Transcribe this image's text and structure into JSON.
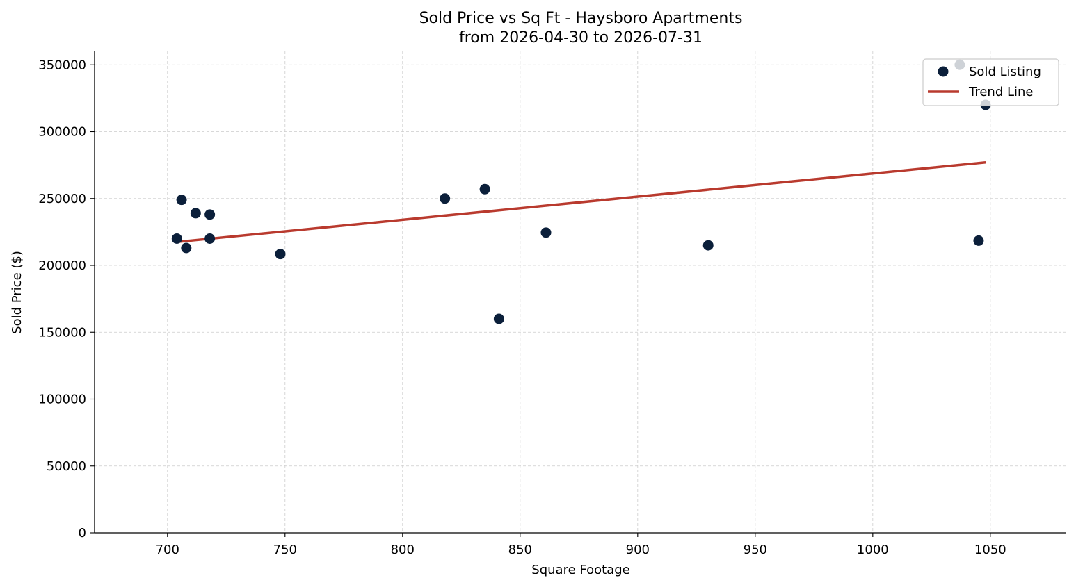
{
  "chart_data": {
    "type": "scatter",
    "title": "Sold Price vs Sq Ft - Haysboro Apartments",
    "subtitle": "from 2026-04-30 to 2026-07-31",
    "xlabel": "Square Footage",
    "ylabel": "Sold Price ($)",
    "xlim": [
      669,
      1082
    ],
    "ylim": [
      0,
      360000
    ],
    "x_ticks": [
      700,
      750,
      800,
      850,
      900,
      950,
      1000,
      1050
    ],
    "y_ticks": [
      0,
      50000,
      100000,
      150000,
      200000,
      250000,
      300000,
      350000
    ],
    "grid": true,
    "legend_position": "top-right",
    "series": [
      {
        "name": "Sold Listing",
        "kind": "scatter",
        "color": "#0b1f3a",
        "points": [
          {
            "x": 704,
            "y": 220000
          },
          {
            "x": 706,
            "y": 249000
          },
          {
            "x": 708,
            "y": 213000
          },
          {
            "x": 712,
            "y": 239000
          },
          {
            "x": 718,
            "y": 238000
          },
          {
            "x": 718,
            "y": 220000
          },
          {
            "x": 748,
            "y": 208500
          },
          {
            "x": 818,
            "y": 250000
          },
          {
            "x": 835,
            "y": 257000
          },
          {
            "x": 841,
            "y": 160000
          },
          {
            "x": 861,
            "y": 224500
          },
          {
            "x": 930,
            "y": 215000
          },
          {
            "x": 1037,
            "y": 350000
          },
          {
            "x": 1045,
            "y": 218500
          },
          {
            "x": 1048,
            "y": 320000
          }
        ]
      },
      {
        "name": "Trend Line",
        "kind": "line",
        "color": "#b93a2e",
        "points": [
          {
            "x": 704,
            "y": 217500
          },
          {
            "x": 1048,
            "y": 277000
          }
        ]
      }
    ]
  }
}
